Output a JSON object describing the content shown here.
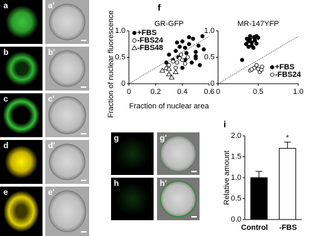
{
  "panels": {
    "a": "a",
    "a2": "a'",
    "b": "b",
    "b2": "b'",
    "c": "c",
    "c2": "c'",
    "d": "d",
    "d2": "d'",
    "e": "e",
    "e2": "e'",
    "f": "f",
    "g": "g",
    "g2": "g'",
    "h": "h",
    "h2": "h'",
    "i": "i"
  },
  "chart_data": [
    {
      "type": "scatter",
      "title": "GR-GFP",
      "xlabel": "Fraction of nuclear area",
      "ylabel": "Fraction of nuclear fluorescence",
      "xlim": [
        0,
        0.6
      ],
      "xticks": [
        0,
        0.2,
        0.4,
        0.6
      ],
      "ylim": [
        0,
        1
      ],
      "yticks": [
        0,
        0.5,
        {
          "value": 1,
          "label": "1.0"
        }
      ],
      "legend": "upper left",
      "series": [
        {
          "name": "+FBS",
          "color": "#000000",
          "marker": "filled-circle",
          "x": [
            0.3,
            0.35,
            0.38,
            0.4,
            0.42,
            0.45,
            0.48,
            0.5,
            0.52,
            0.55,
            0.33,
            0.37,
            0.43,
            0.47,
            0.5,
            0.53,
            0.28,
            0.4,
            0.45,
            0.56,
            0.36,
            0.42,
            0.5
          ],
          "values": [
            0.55,
            0.62,
            0.7,
            0.8,
            0.68,
            0.75,
            0.85,
            0.6,
            0.72,
            0.9,
            0.45,
            0.5,
            0.58,
            0.4,
            0.48,
            0.35,
            0.4,
            0.3,
            0.88,
            0.65,
            0.78,
            0.45,
            0.52
          ]
        },
        {
          "name": "-FBS24",
          "color": "#000000",
          "marker": "open-circle",
          "x": [
            0.3,
            0.33,
            0.36,
            0.38,
            0.4,
            0.42,
            0.44,
            0.35,
            0.39
          ],
          "values": [
            0.35,
            0.42,
            0.4,
            0.48,
            0.45,
            0.38,
            0.5,
            0.3,
            0.55
          ]
        },
        {
          "name": "-FBS48",
          "color": "#000000",
          "marker": "open-triangle",
          "x": [
            0.25,
            0.28,
            0.3,
            0.32,
            0.35,
            0.3
          ],
          "values": [
            0.25,
            0.3,
            0.18,
            0.12,
            0.22,
            0.28
          ]
        }
      ]
    },
    {
      "type": "scatter",
      "title": "MR-147YFP",
      "xlim": [
        0,
        1
      ],
      "xticks": [
        0,
        0.5,
        {
          "value": 1,
          "label": "1.0"
        }
      ],
      "ylim": [
        0,
        1
      ],
      "yticks": [
        0,
        0.5,
        {
          "value": 1,
          "label": "1.0"
        }
      ],
      "legend": "lower right",
      "series": [
        {
          "name": "+FBS",
          "color": "#000000",
          "marker": "filled-circle",
          "x": [
            0.35,
            0.38,
            0.4,
            0.42,
            0.45,
            0.48,
            0.5,
            0.38,
            0.42,
            0.46,
            0.4,
            0.44,
            0.36,
            0.48,
            0.3
          ],
          "values": [
            0.75,
            0.8,
            0.85,
            0.78,
            0.88,
            0.9,
            0.87,
            0.7,
            0.72,
            0.82,
            0.9,
            0.68,
            0.85,
            0.76,
            0.45
          ]
        },
        {
          "name": "-FBS24",
          "color": "#000000",
          "marker": "open-circle",
          "x": [
            0.4,
            0.45,
            0.5,
            0.55,
            0.52,
            0.48,
            0.42,
            0.54
          ],
          "values": [
            0.25,
            0.3,
            0.28,
            0.32,
            0.22,
            0.35,
            0.27,
            0.26
          ]
        }
      ]
    },
    {
      "type": "bar",
      "ylabel": "Relative amount",
      "categories": [
        "Control",
        "-FBS"
      ],
      "values": [
        1.0,
        1.7
      ],
      "errors": [
        0.15,
        0.15
      ],
      "colors": [
        "#000000",
        "#ffffff"
      ],
      "annotations": [
        "",
        "*"
      ],
      "ylim": [
        0,
        2
      ],
      "yticks": [
        {
          "value": 0,
          "label": "0.0"
        },
        {
          "value": 0.5,
          "label": "0.5"
        },
        {
          "value": 1,
          "label": "1.0"
        },
        {
          "value": 1.5,
          "label": "1.5"
        },
        {
          "value": 2,
          "label": "2.0"
        }
      ]
    }
  ]
}
